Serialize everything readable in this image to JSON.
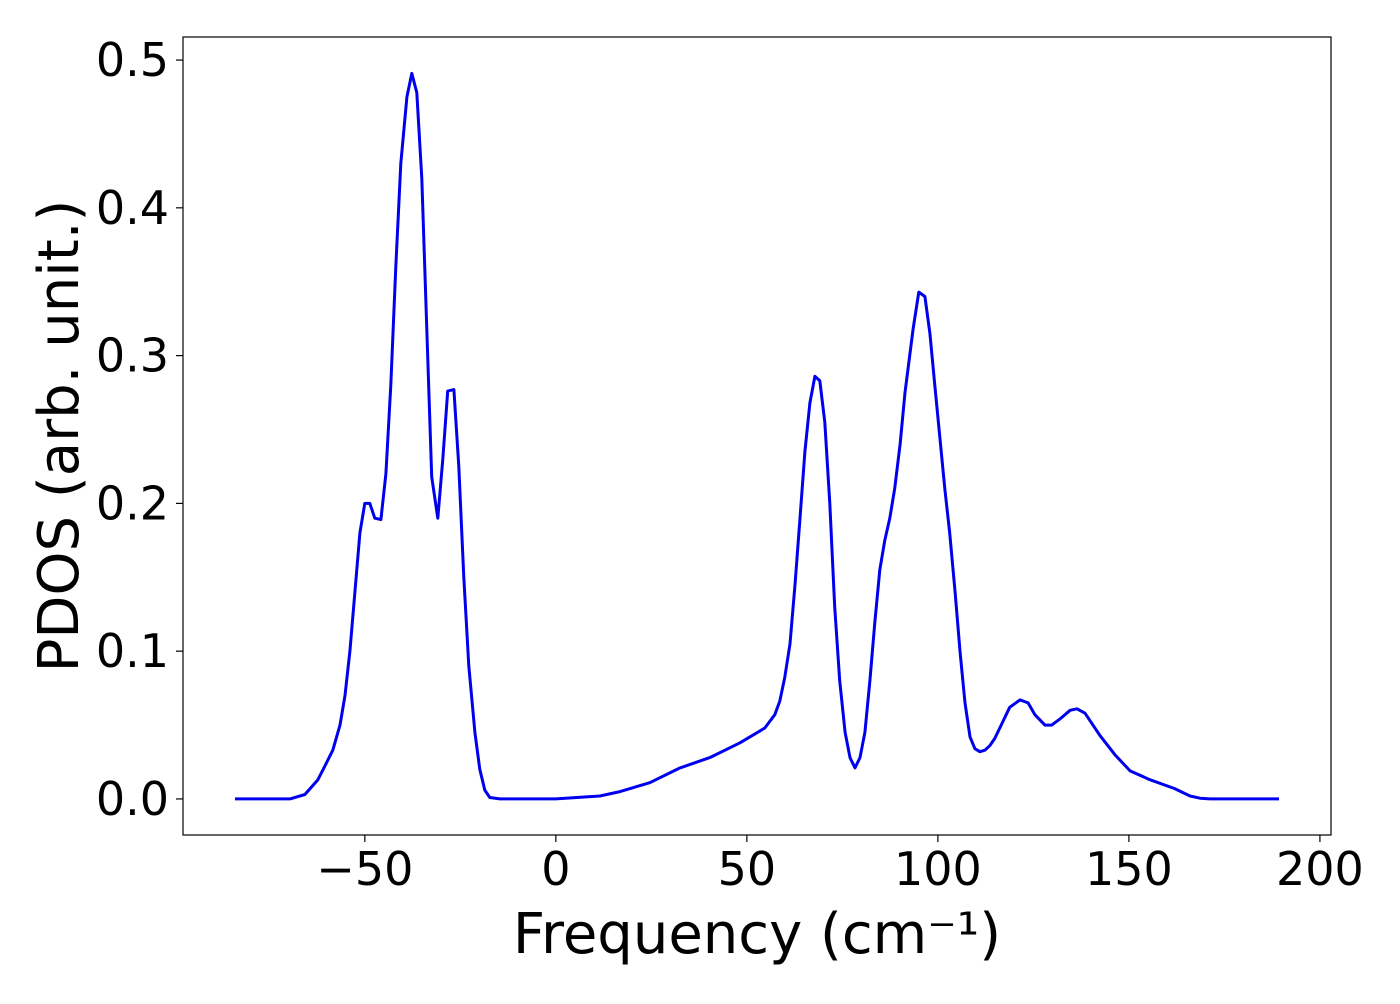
{
  "chart_data": {
    "type": "line",
    "xlabel": "Frequency (cm⁻¹)",
    "ylabel": "PDOS (arb. unit.)",
    "xlim": [
      -97.6,
      202.9
    ],
    "ylim": [
      -0.0244,
      0.5156
    ],
    "xticks": [
      {
        "value": -50,
        "label": "−50"
      },
      0,
      50,
      100,
      150,
      200
    ],
    "yticks": [
      {
        "value": 0,
        "label": "0.0"
      },
      0.1,
      0.2,
      0.3,
      0.4,
      0.5
    ],
    "grid": false,
    "series": [
      {
        "color": "#0000ee",
        "x": [
          -84,
          -69.6,
          -65.7,
          -62.3,
          -60.5,
          -58.4,
          -56.5,
          -55.2,
          -53.9,
          -52.6,
          -51.3,
          -50,
          -48.7,
          -47.4,
          -45.8,
          -44.5,
          -43.2,
          -41.9,
          -40.6,
          -39,
          -37.7,
          -36.4,
          -35.1,
          -33.8,
          -32.5,
          -30.9,
          -29.6,
          -28.3,
          -26.7,
          -25.4,
          -24.1,
          -22.8,
          -21.2,
          -19.9,
          -18.6,
          -17.3,
          -14.7,
          0,
          11.5,
          16.8,
          24.6,
          32.5,
          40.3,
          48.2,
          54.7,
          57.3,
          58.6,
          59.9,
          61.3,
          62.6,
          63.9,
          65.2,
          66.5,
          67.8,
          69.1,
          70.4,
          71.7,
          73,
          74.3,
          75.7,
          77,
          78.3,
          79.6,
          80.9,
          82.2,
          83.5,
          84.8,
          86.1,
          87.4,
          88.7,
          90.1,
          91.4,
          93.5,
          95,
          96.6,
          97.9,
          99.2,
          100.5,
          101.8,
          103.1,
          104.5,
          105.8,
          107.1,
          108.4,
          109.7,
          111,
          112.3,
          113.6,
          114.9,
          116.2,
          118.8,
          121.5,
          123.6,
          125.4,
          128,
          129.8,
          131.9,
          134.6,
          136.4,
          138.5,
          142.4,
          146.3,
          150.3,
          155.5,
          162,
          166,
          168.6,
          171.2,
          189.3
        ],
        "values": [
          0,
          0,
          0.003,
          0.013,
          0.022,
          0.033,
          0.05,
          0.07,
          0.1,
          0.14,
          0.18,
          0.2,
          0.2,
          0.19,
          0.189,
          0.22,
          0.28,
          0.36,
          0.43,
          0.475,
          0.491,
          0.478,
          0.42,
          0.32,
          0.218,
          0.19,
          0.23,
          0.276,
          0.277,
          0.225,
          0.15,
          0.09,
          0.045,
          0.02,
          0.006,
          0.001,
          0,
          0,
          0.002,
          0.005,
          0.011,
          0.021,
          0.028,
          0.038,
          0.048,
          0.057,
          0.066,
          0.082,
          0.105,
          0.145,
          0.19,
          0.235,
          0.268,
          0.286,
          0.283,
          0.255,
          0.2,
          0.13,
          0.08,
          0.045,
          0.028,
          0.021,
          0.028,
          0.045,
          0.08,
          0.12,
          0.155,
          0.175,
          0.19,
          0.21,
          0.24,
          0.275,
          0.318,
          0.343,
          0.34,
          0.315,
          0.28,
          0.245,
          0.21,
          0.18,
          0.14,
          0.1,
          0.065,
          0.042,
          0.034,
          0.032,
          0.033,
          0.036,
          0.041,
          0.048,
          0.062,
          0.067,
          0.065,
          0.057,
          0.05,
          0.05,
          0.054,
          0.06,
          0.061,
          0.058,
          0.043,
          0.03,
          0.019,
          0.013,
          0.007,
          0.002,
          0.0005,
          0,
          0
        ]
      }
    ]
  }
}
